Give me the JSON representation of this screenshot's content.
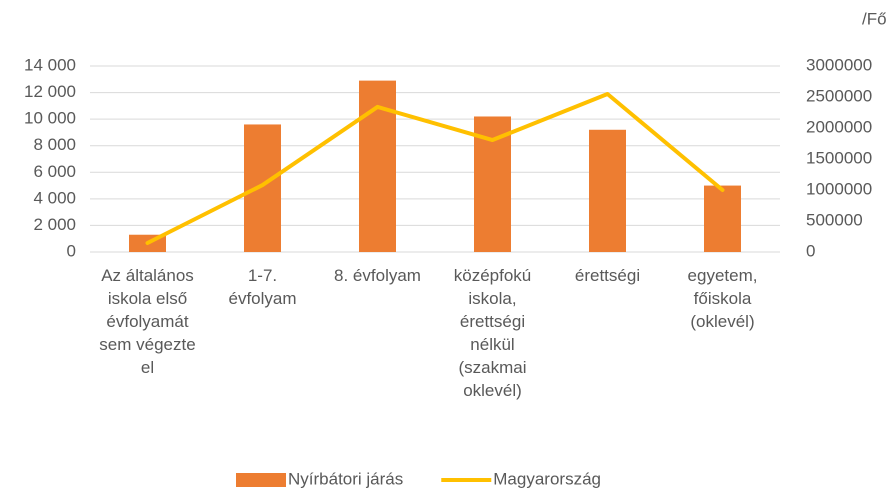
{
  "chart_data": {
    "type": "bar_line",
    "unit_label": "/Fő",
    "categories": [
      "Az általános iskola első évfolyamát sem végezte el",
      "1-7. évfolyam",
      "8. évfolyam",
      "középfokú iskola, érettségi nélkül (szakmai oklevél)",
      "érettségi",
      "egyetem, főiskola (oklevél)"
    ],
    "series": [
      {
        "name": "Nyírbátori járás",
        "type": "bar",
        "color": "#ED7D31",
        "values": [
          1300,
          9600,
          12900,
          10200,
          9200,
          5000
        ]
      },
      {
        "name": "Magyarország",
        "type": "line",
        "axis": "y2",
        "color": "#FFC000",
        "values": [
          145000,
          1080000,
          2340000,
          1806000,
          2548000,
          1000000
        ]
      }
    ],
    "ylim": [
      0,
      14000
    ],
    "yticks": [
      0,
      {
        "value": 2000,
        "label": "2 000"
      },
      {
        "value": 4000,
        "label": "4 000"
      },
      {
        "value": 6000,
        "label": "6 000"
      },
      {
        "value": 8000,
        "label": "8 000"
      },
      {
        "value": 10000,
        "label": "10 000"
      },
      {
        "value": 12000,
        "label": "12 000"
      },
      {
        "value": 14000,
        "label": "14 000"
      }
    ],
    "y2lim": [
      0,
      3000000
    ],
    "y2ticks": [
      0,
      500000,
      1000000,
      1500000,
      2000000,
      2500000,
      3000000
    ],
    "grid": true,
    "legend": "bottom"
  }
}
